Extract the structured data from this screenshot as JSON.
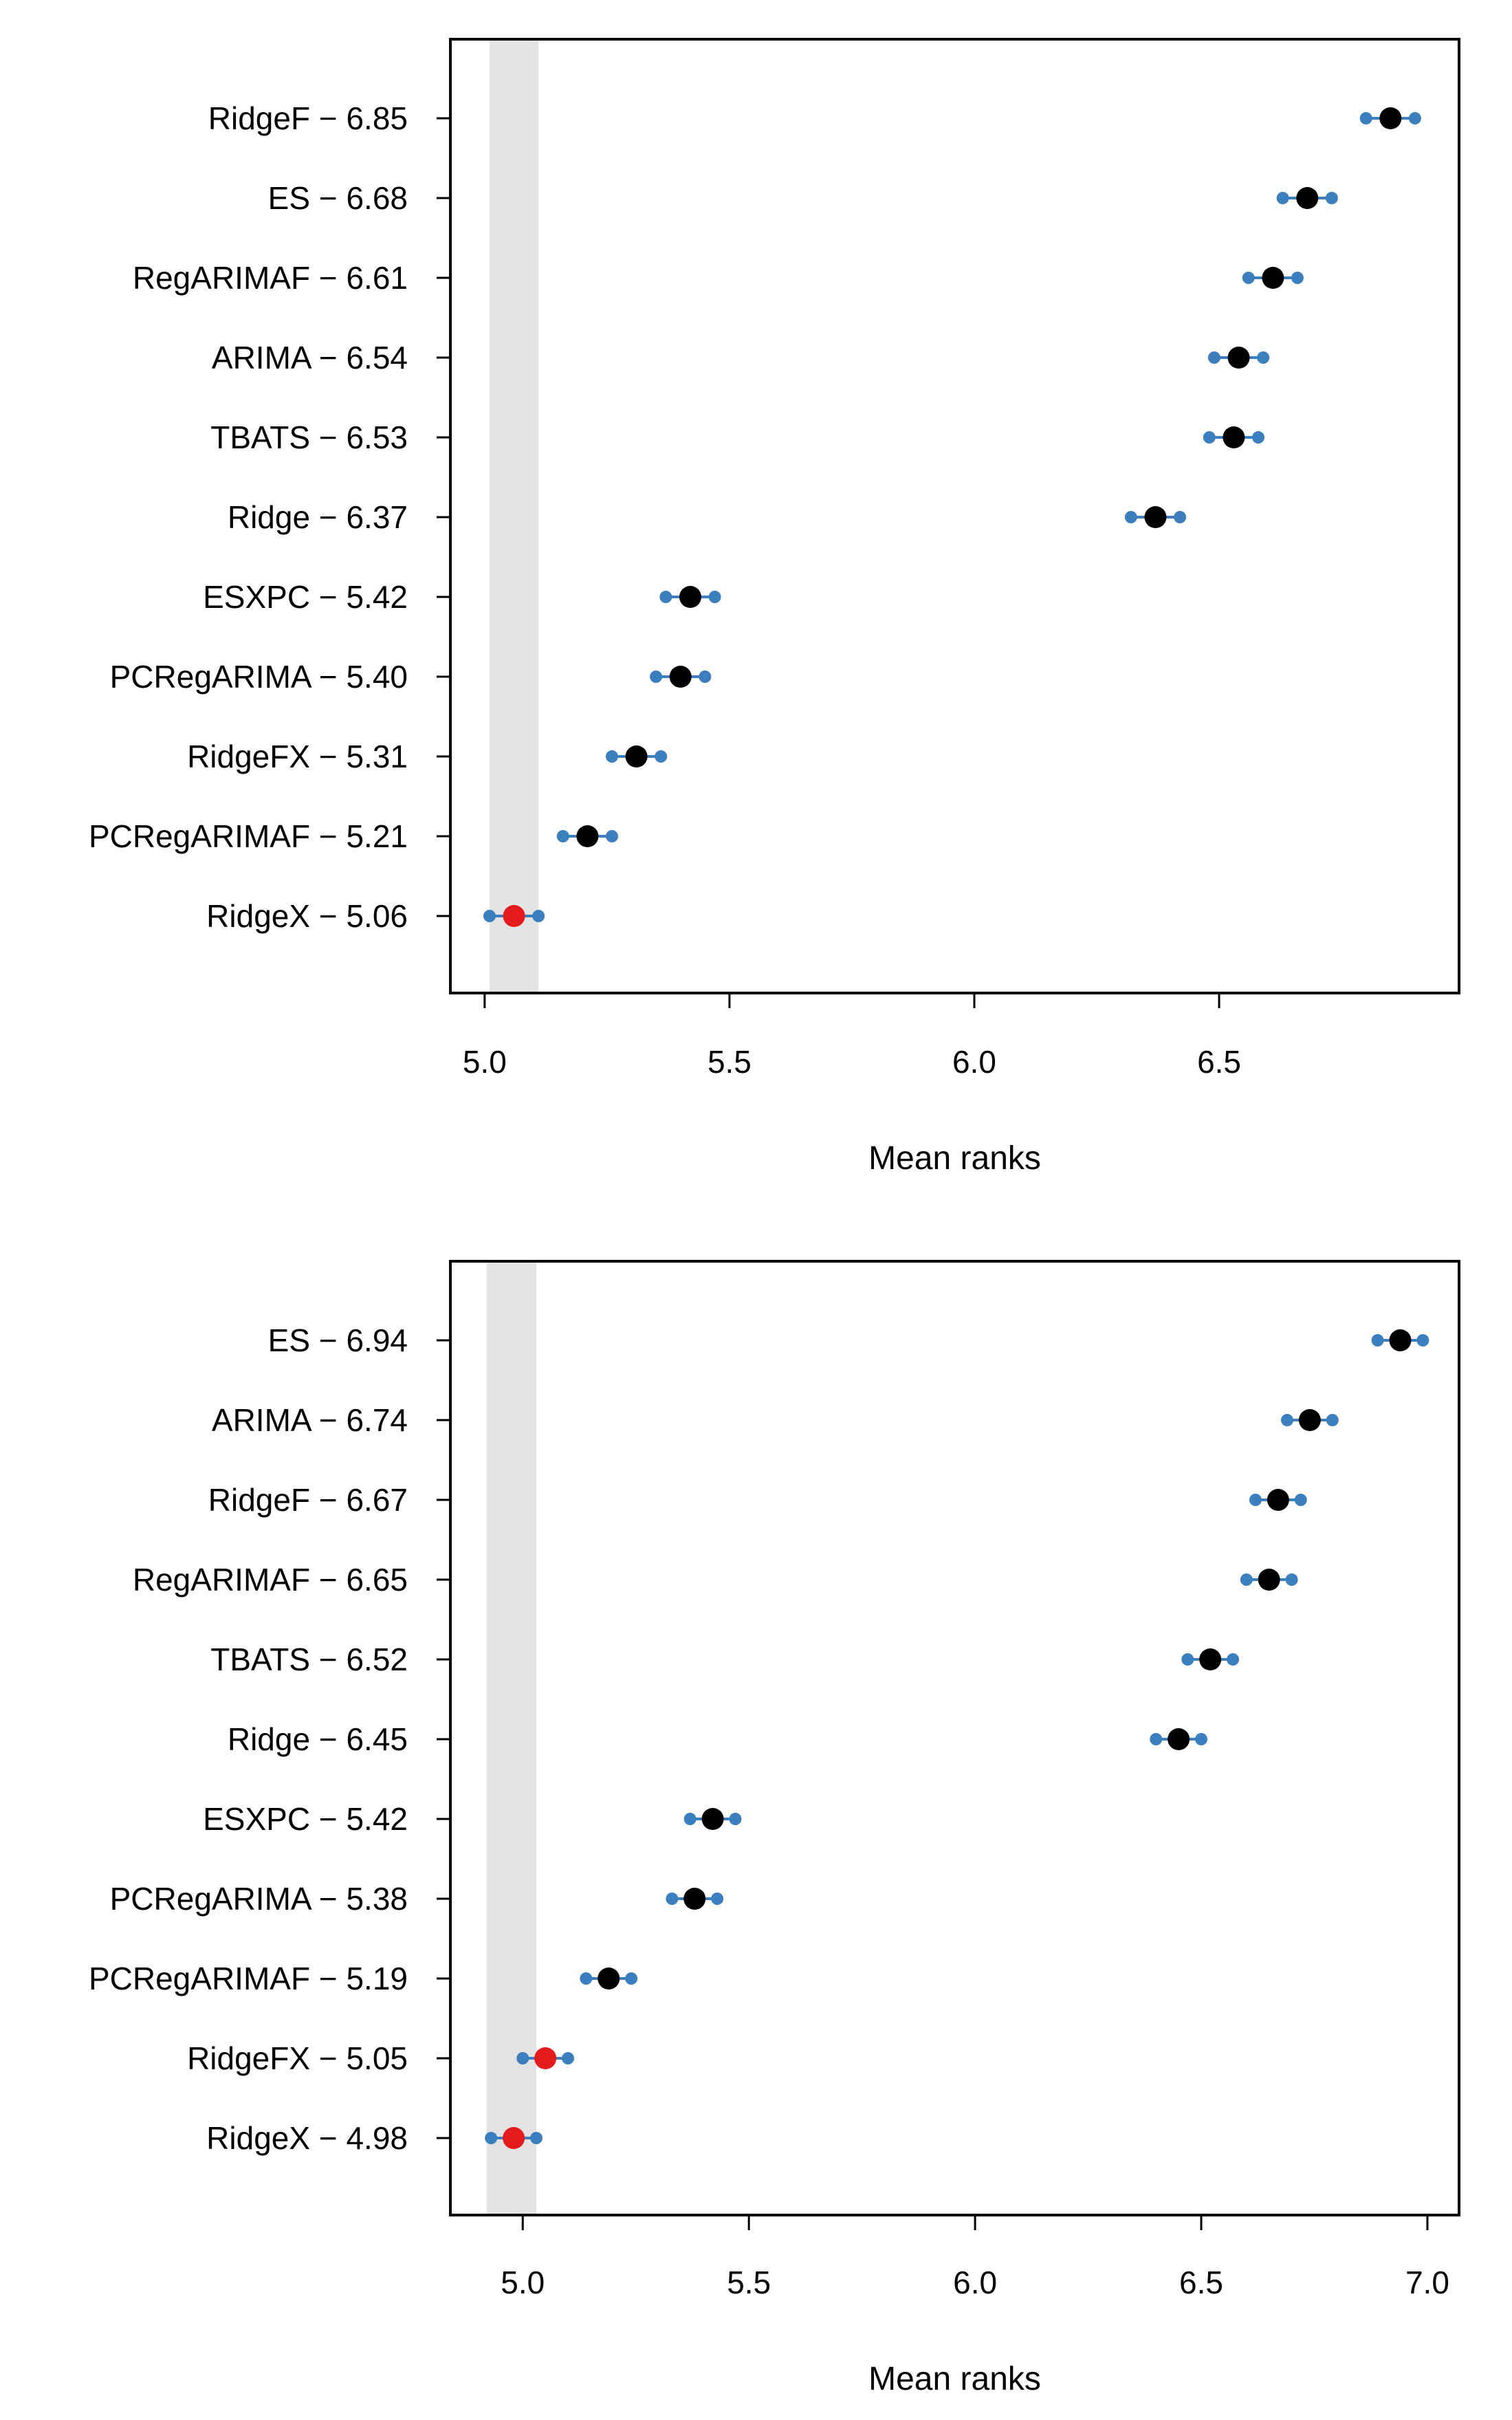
{
  "colors": {
    "point": "#000000",
    "highlight": "#e41a1c",
    "interval": "#3c7fbf",
    "band": "#e3e3e3",
    "axis": "#000000"
  },
  "chart_data": [
    {
      "type": "scatter",
      "title": "",
      "xlabel": "Mean ranks",
      "ylabel": "",
      "xlim": [
        4.93,
        6.99
      ],
      "xticks": [
        "5.0",
        "5.5",
        "6.0",
        "6.5"
      ],
      "xtick_values": [
        5.0,
        5.5,
        6.0,
        6.5
      ],
      "critical_band": [
        5.01,
        5.11
      ],
      "series": [
        {
          "label": "RidgeF − 6.85",
          "name": "RidgeF",
          "mean_rank": 6.85,
          "lower": 6.8,
          "upper": 6.9,
          "highlight": false
        },
        {
          "label": "ES − 6.68",
          "name": "ES",
          "mean_rank": 6.68,
          "lower": 6.63,
          "upper": 6.73,
          "highlight": false
        },
        {
          "label": "RegARIMAF − 6.61",
          "name": "RegARIMAF",
          "mean_rank": 6.61,
          "lower": 6.56,
          "upper": 6.66,
          "highlight": false
        },
        {
          "label": "ARIMA − 6.54",
          "name": "ARIMA",
          "mean_rank": 6.54,
          "lower": 6.49,
          "upper": 6.59,
          "highlight": false
        },
        {
          "label": "TBATS − 6.53",
          "name": "TBATS",
          "mean_rank": 6.53,
          "lower": 6.48,
          "upper": 6.58,
          "highlight": false
        },
        {
          "label": "Ridge − 6.37",
          "name": "Ridge",
          "mean_rank": 6.37,
          "lower": 6.32,
          "upper": 6.42,
          "highlight": false
        },
        {
          "label": "ESXPC − 5.42",
          "name": "ESXPC",
          "mean_rank": 5.42,
          "lower": 5.37,
          "upper": 5.47,
          "highlight": false
        },
        {
          "label": "PCRegARIMA − 5.40",
          "name": "PCRegARIMA",
          "mean_rank": 5.4,
          "lower": 5.35,
          "upper": 5.45,
          "highlight": false
        },
        {
          "label": "RidgeFX − 5.31",
          "name": "RidgeFX",
          "mean_rank": 5.31,
          "lower": 5.26,
          "upper": 5.36,
          "highlight": false
        },
        {
          "label": "PCRegARIMAF − 5.21",
          "name": "PCRegARIMAF",
          "mean_rank": 5.21,
          "lower": 5.16,
          "upper": 5.26,
          "highlight": false
        },
        {
          "label": "RidgeX − 5.06",
          "name": "RidgeX",
          "mean_rank": 5.06,
          "lower": 5.01,
          "upper": 5.11,
          "highlight": true
        }
      ]
    },
    {
      "type": "scatter",
      "title": "",
      "xlabel": "Mean ranks",
      "ylabel": "",
      "xlim": [
        4.84,
        7.07
      ],
      "xticks": [
        "5.0",
        "5.5",
        "6.0",
        "6.5",
        "7.0"
      ],
      "xtick_values": [
        5.0,
        5.5,
        6.0,
        6.5,
        7.0
      ],
      "critical_band": [
        4.92,
        5.03
      ],
      "series": [
        {
          "label": "ES − 6.94",
          "name": "ES",
          "mean_rank": 6.94,
          "lower": 6.89,
          "upper": 6.99,
          "highlight": false
        },
        {
          "label": "ARIMA − 6.74",
          "name": "ARIMA",
          "mean_rank": 6.74,
          "lower": 6.69,
          "upper": 6.79,
          "highlight": false
        },
        {
          "label": "RidgeF − 6.67",
          "name": "RidgeF",
          "mean_rank": 6.67,
          "lower": 6.62,
          "upper": 6.72,
          "highlight": false
        },
        {
          "label": "RegARIMAF − 6.65",
          "name": "RegARIMAF",
          "mean_rank": 6.65,
          "lower": 6.6,
          "upper": 6.7,
          "highlight": false
        },
        {
          "label": "TBATS − 6.52",
          "name": "TBATS",
          "mean_rank": 6.52,
          "lower": 6.47,
          "upper": 6.57,
          "highlight": false
        },
        {
          "label": "Ridge − 6.45",
          "name": "Ridge",
          "mean_rank": 6.45,
          "lower": 6.4,
          "upper": 6.5,
          "highlight": false
        },
        {
          "label": "ESXPC − 5.42",
          "name": "ESXPC",
          "mean_rank": 5.42,
          "lower": 5.37,
          "upper": 5.47,
          "highlight": false
        },
        {
          "label": "PCRegARIMA − 5.38",
          "name": "PCRegARIMA",
          "mean_rank": 5.38,
          "lower": 5.33,
          "upper": 5.43,
          "highlight": false
        },
        {
          "label": "PCRegARIMAF − 5.19",
          "name": "PCRegARIMAF",
          "mean_rank": 5.19,
          "lower": 5.14,
          "upper": 5.24,
          "highlight": false
        },
        {
          "label": "RidgeFX − 5.05",
          "name": "RidgeFX",
          "mean_rank": 5.05,
          "lower": 5.0,
          "upper": 5.1,
          "highlight": true
        },
        {
          "label": "RidgeX − 4.98",
          "name": "RidgeX",
          "mean_rank": 4.98,
          "lower": 4.93,
          "upper": 5.03,
          "highlight": true
        }
      ]
    }
  ]
}
